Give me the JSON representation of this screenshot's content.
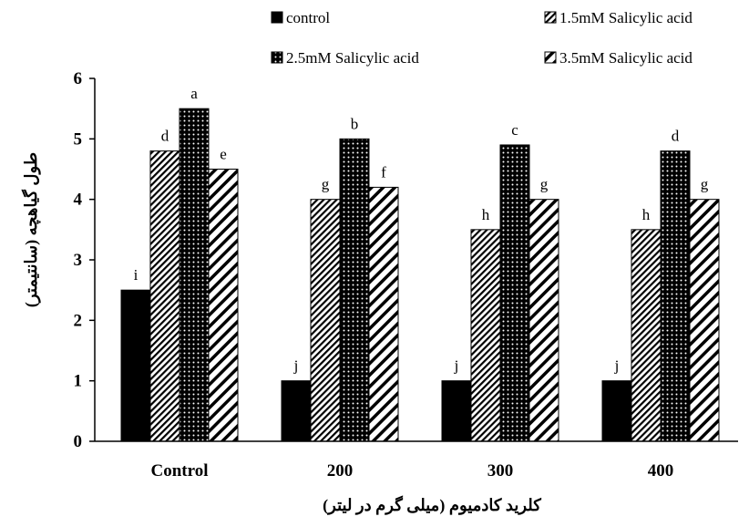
{
  "chart_data": {
    "type": "bar",
    "categories": [
      "Control",
      "200",
      "300",
      "400"
    ],
    "series": [
      {
        "name": "control",
        "values": [
          2.5,
          1.0,
          1.0,
          1.0
        ],
        "labels": [
          "i",
          "j",
          "j",
          "j"
        ],
        "pattern": "solid"
      },
      {
        "name": "1.5mM Salicylic acid",
        "values": [
          4.8,
          4.0,
          3.5,
          3.5
        ],
        "labels": [
          "d",
          "g",
          "h",
          "h"
        ],
        "pattern": "narrow-diagonal"
      },
      {
        "name": "2.5mM Salicylic acid",
        "values": [
          5.5,
          5.0,
          4.9,
          4.8
        ],
        "labels": [
          "a",
          "b",
          "c",
          "d"
        ],
        "pattern": "dots"
      },
      {
        "name": "3.5mM Salicylic acid",
        "values": [
          4.5,
          4.2,
          4.0,
          4.0
        ],
        "labels": [
          "e",
          "f",
          "g",
          "g"
        ],
        "pattern": "wide-diagonal"
      }
    ],
    "xlabel": "کلرید کادمیوم (میلی گرم در لیتر)",
    "ylabel": "طول گیاهچه (سانتیمتر)",
    "ylim": [
      0,
      6
    ],
    "yticks": [
      0,
      1,
      2,
      3,
      4,
      5,
      6
    ],
    "grid": false,
    "legend": "top",
    "colors": {
      "bar_fill": "#000000",
      "bar_stroke": "#000000",
      "background": "#ffffff"
    }
  }
}
